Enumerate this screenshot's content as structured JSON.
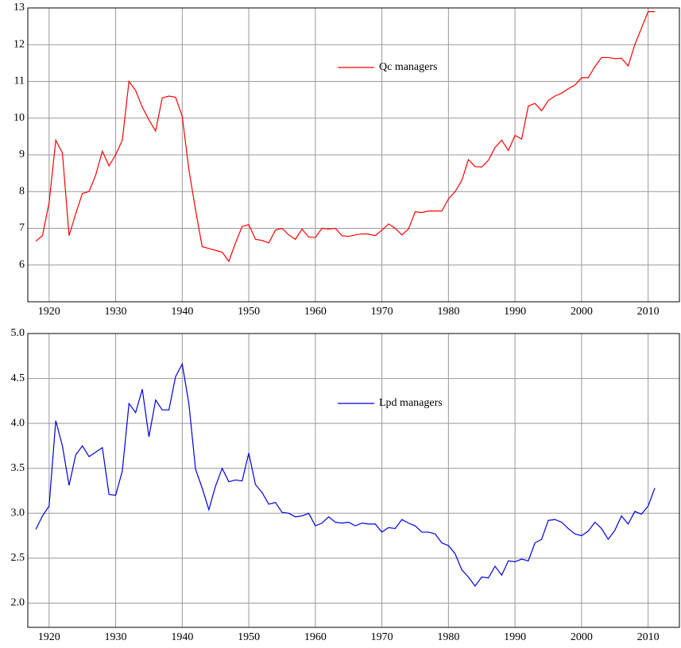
{
  "chart_data": [
    {
      "type": "line",
      "legend": "upper center",
      "grid": true,
      "x": [
        1918,
        1919,
        1920,
        1921,
        1922,
        1923,
        1924,
        1925,
        1926,
        1927,
        1928,
        1929,
        1930,
        1931,
        1932,
        1933,
        1934,
        1935,
        1936,
        1937,
        1938,
        1939,
        1940,
        1941,
        1942,
        1943,
        1944,
        1945,
        1946,
        1947,
        1948,
        1949,
        1950,
        1951,
        1952,
        1953,
        1954,
        1955,
        1956,
        1957,
        1958,
        1959,
        1960,
        1961,
        1962,
        1963,
        1964,
        1965,
        1966,
        1967,
        1968,
        1969,
        1970,
        1971,
        1972,
        1973,
        1974,
        1975,
        1976,
        1977,
        1978,
        1979,
        1980,
        1981,
        1982,
        1983,
        1984,
        1985,
        1986,
        1987,
        1988,
        1989,
        1990,
        1991,
        1992,
        1993,
        1994,
        1995,
        1996,
        1997,
        1998,
        1999,
        2000,
        2001,
        2002,
        2003,
        2004,
        2005,
        2006,
        2007,
        2008,
        2009,
        2010,
        2011
      ],
      "series": [
        {
          "name": "Qc managers",
          "color": "#ff0000",
          "values": [
            6.65,
            6.8,
            7.7,
            9.4,
            9.05,
            6.8,
            7.4,
            7.95,
            8.0,
            8.45,
            9.1,
            8.7,
            9.0,
            9.4,
            11.0,
            10.75,
            10.3,
            9.95,
            9.65,
            10.55,
            10.6,
            10.57,
            10.05,
            8.6,
            7.5,
            6.5,
            6.45,
            6.4,
            6.35,
            6.1,
            6.6,
            7.05,
            7.1,
            6.7,
            6.67,
            6.6,
            6.95,
            7.0,
            6.82,
            6.7,
            6.98,
            6.76,
            6.75,
            7.0,
            6.98,
            7.0,
            6.8,
            6.78,
            6.82,
            6.85,
            6.84,
            6.8,
            6.95,
            7.12,
            7.0,
            6.82,
            6.98,
            7.45,
            7.43,
            7.47,
            7.47,
            7.47,
            7.8,
            8.0,
            8.3,
            8.87,
            8.68,
            8.67,
            8.85,
            9.2,
            9.4,
            9.12,
            9.53,
            9.43,
            10.33,
            10.4,
            10.2,
            10.48,
            10.6,
            10.68,
            10.8,
            10.9,
            11.1,
            11.1,
            11.4,
            11.65,
            11.65,
            11.62,
            11.63,
            11.42,
            12.0,
            12.45,
            12.9,
            12.9
          ]
        }
      ],
      "xlim": [
        1916.8,
        2014.7
      ],
      "xticks": [
        1920,
        1930,
        1940,
        1950,
        1960,
        1970,
        1980,
        1990,
        2000,
        2010
      ],
      "ylim": [
        5,
        13
      ],
      "yticks": [
        6,
        7,
        8,
        9,
        10,
        11,
        12,
        13
      ]
    },
    {
      "type": "line",
      "legend": "upper center",
      "grid": true,
      "x": [
        1918,
        1919,
        1920,
        1921,
        1922,
        1923,
        1924,
        1925,
        1926,
        1927,
        1928,
        1929,
        1930,
        1931,
        1932,
        1933,
        1934,
        1935,
        1936,
        1937,
        1938,
        1939,
        1940,
        1941,
        1942,
        1943,
        1944,
        1945,
        1946,
        1947,
        1948,
        1949,
        1950,
        1951,
        1952,
        1953,
        1954,
        1955,
        1956,
        1957,
        1958,
        1959,
        1960,
        1961,
        1962,
        1963,
        1964,
        1965,
        1966,
        1967,
        1968,
        1969,
        1970,
        1971,
        1972,
        1973,
        1974,
        1975,
        1976,
        1977,
        1978,
        1979,
        1980,
        1981,
        1982,
        1983,
        1984,
        1985,
        1986,
        1987,
        1988,
        1989,
        1990,
        1991,
        1992,
        1993,
        1994,
        1995,
        1996,
        1997,
        1998,
        1999,
        2000,
        2001,
        2002,
        2003,
        2004,
        2005,
        2006,
        2007,
        2008,
        2009,
        2010,
        2011
      ],
      "series": [
        {
          "name": "Lpd managers",
          "color": "#0000dd",
          "values": [
            2.82,
            2.97,
            3.08,
            4.03,
            3.75,
            3.31,
            3.65,
            3.75,
            3.63,
            3.68,
            3.73,
            3.21,
            3.2,
            3.47,
            4.22,
            4.12,
            4.38,
            3.85,
            4.26,
            4.15,
            4.15,
            4.52,
            4.66,
            4.22,
            3.49,
            3.28,
            3.04,
            3.3,
            3.5,
            3.35,
            3.37,
            3.36,
            3.67,
            3.32,
            3.23,
            3.1,
            3.12,
            3.01,
            3.0,
            2.96,
            2.97,
            3.0,
            2.86,
            2.89,
            2.96,
            2.9,
            2.89,
            2.9,
            2.86,
            2.89,
            2.88,
            2.88,
            2.79,
            2.84,
            2.83,
            2.93,
            2.89,
            2.86,
            2.79,
            2.79,
            2.77,
            2.67,
            2.64,
            2.55,
            2.37,
            2.29,
            2.19,
            2.29,
            2.28,
            2.41,
            2.31,
            2.47,
            2.46,
            2.49,
            2.47,
            2.67,
            2.71,
            2.92,
            2.93,
            2.9,
            2.83,
            2.77,
            2.75,
            2.8,
            2.9,
            2.83,
            2.71,
            2.81,
            2.97,
            2.88,
            3.02,
            2.99,
            3.08,
            3.28
          ]
        }
      ],
      "xlim": [
        1916.8,
        2014.7
      ],
      "xticks": [
        1920,
        1930,
        1940,
        1950,
        1960,
        1970,
        1980,
        1990,
        2000,
        2010
      ],
      "ylim": [
        1.73,
        5.0
      ],
      "yticks": [
        {
          "value": 2.0,
          "label": "2.0"
        },
        2.5,
        {
          "value": 3.0,
          "label": "3.0"
        },
        3.5,
        {
          "value": 4.0,
          "label": "4.0"
        },
        4.5,
        {
          "value": 5.0,
          "label": "5.0"
        }
      ]
    }
  ]
}
